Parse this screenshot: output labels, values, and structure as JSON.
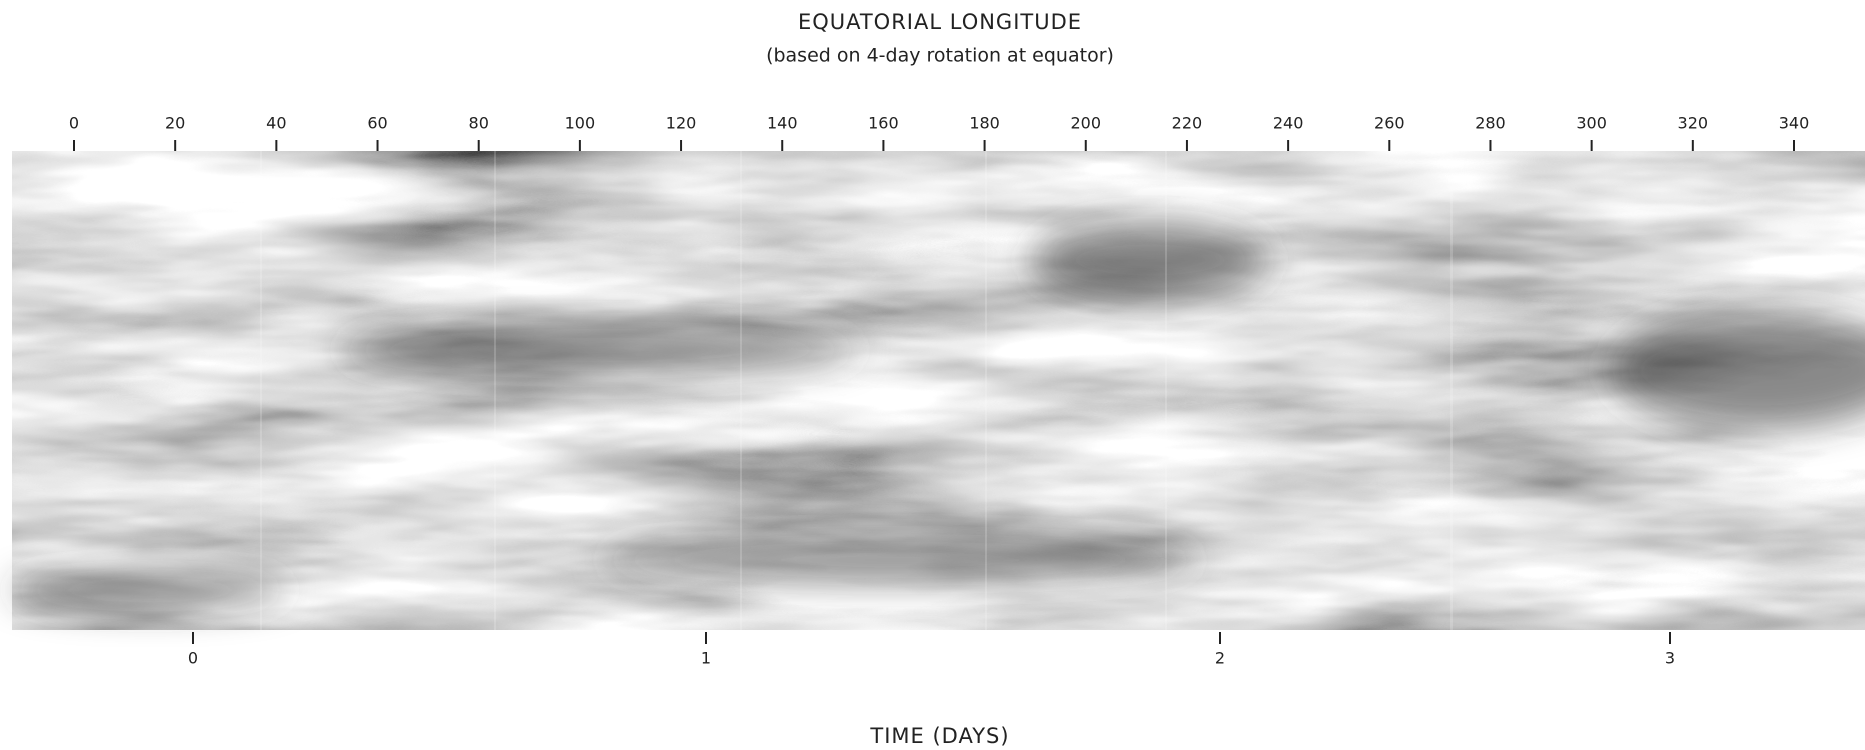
{
  "title": "EQUATORIAL LONGITUDE",
  "subtitle": "(based on 4-day rotation at equator)",
  "top_axis": {
    "ticks": [
      0,
      20,
      40,
      60,
      80,
      100,
      120,
      140,
      160,
      180,
      200,
      220,
      240,
      260,
      280,
      300,
      320,
      340
    ]
  },
  "bottom_axis": {
    "ticks": [
      0,
      1,
      2,
      3
    ],
    "label": "TIME (DAYS)"
  }
}
